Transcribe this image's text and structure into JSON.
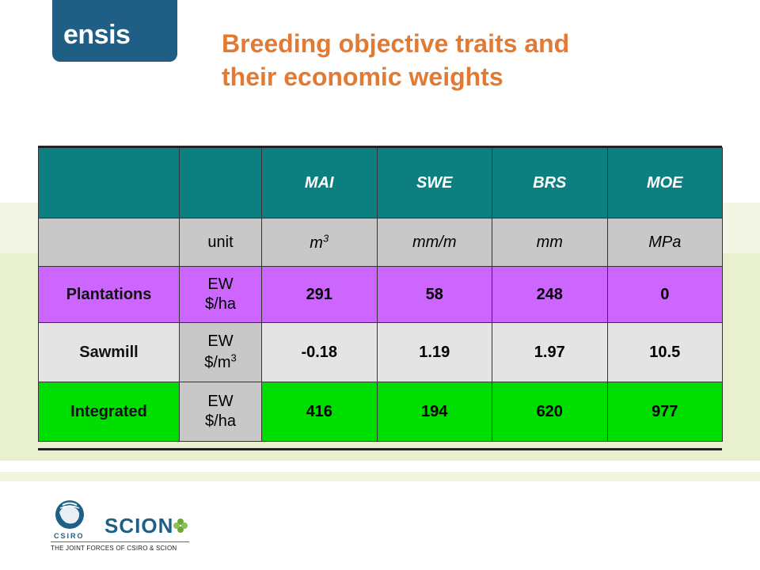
{
  "logo": {
    "text": "ensis"
  },
  "title": {
    "line1": "Breeding objective traits and",
    "line2": "their economic weights"
  },
  "table": {
    "header": [
      "",
      "",
      "MAI",
      "SWE",
      "BRS",
      "MOE"
    ],
    "unit_row": {
      "label": "unit",
      "units": [
        "m3",
        "mm/m",
        "mm",
        "MPa"
      ]
    },
    "rows": [
      {
        "name": "Plantations",
        "ew_line1": "EW",
        "ew_line2": "$/ha",
        "values": [
          "291",
          "58",
          "248",
          "0"
        ]
      },
      {
        "name": "Sawmill",
        "ew_line1": "EW",
        "ew_line2": "$/m3",
        "values": [
          "-0.18",
          "1.19",
          "1.97",
          "10.5"
        ]
      },
      {
        "name": "Integrated",
        "ew_line1": "EW",
        "ew_line2": "$/ha",
        "values": [
          "416",
          "194",
          "620",
          "977"
        ]
      }
    ],
    "colors": {
      "header": "#0e7f80",
      "unit": "#c8c8c8",
      "plantations": "#cc66ff",
      "sawmill": "#e4e4e4",
      "integrated": "#00dd00"
    }
  },
  "footer": {
    "scion": "SCION",
    "tagline": "THE JOINT FORCES OF CSIRO & SCION",
    "csiro_logo_text": "CSIRO"
  },
  "colors": {
    "brand": "#1f5f86",
    "title": "#e47a32"
  }
}
